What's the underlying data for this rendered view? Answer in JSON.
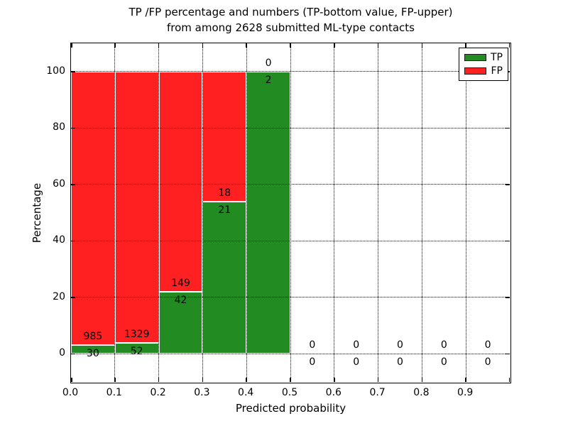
{
  "figure": {
    "title_line1": "TP /FP percentage and numbers (TP-bottom value, FP-upper)",
    "title_line2": "from among 2628 submitted ML-type contacts",
    "xlabel": "Predicted probability",
    "ylabel": "Percentage"
  },
  "legend": {
    "items": [
      {
        "label": "TP",
        "color": "#228b22"
      },
      {
        "label": "FP",
        "color": "#ff2121"
      }
    ]
  },
  "chart_data": {
    "type": "bar",
    "stacked": true,
    "title": "TP /FP percentage and numbers (TP-bottom value, FP-upper)\nfrom among 2628 submitted ML-type contacts",
    "xlabel": "Predicted probability",
    "ylabel": "Percentage",
    "total_submitted": 2628,
    "xlim": [
      0.0,
      1.0
    ],
    "ylim": [
      -10,
      110
    ],
    "grid": true,
    "grid_style": "dotted",
    "legend_position": "upper right",
    "series_colors": {
      "tp": "#228b22",
      "fp": "#ff2121"
    },
    "xticks": [
      "0.0",
      "0.1",
      "0.2",
      "0.3",
      "0.4",
      "0.5",
      "0.6",
      "0.7",
      "0.8",
      "0.9"
    ],
    "xtick_values": [
      0.0,
      0.1,
      0.2,
      0.3,
      0.4,
      0.5,
      0.6,
      0.7,
      0.8,
      0.9
    ],
    "yticks": [
      "0",
      "20",
      "40",
      "60",
      "80",
      "100"
    ],
    "ytick_values": [
      0,
      20,
      40,
      60,
      80,
      100
    ],
    "bins": [
      {
        "range": [
          0.0,
          0.1
        ],
        "tp": 30,
        "fp": 985,
        "tp_percent": 2.96,
        "fp_percent": 97.04
      },
      {
        "range": [
          0.1,
          0.2
        ],
        "tp": 52,
        "fp": 1329,
        "tp_percent": 3.77,
        "fp_percent": 96.23
      },
      {
        "range": [
          0.2,
          0.3
        ],
        "tp": 42,
        "fp": 149,
        "tp_percent": 21.99,
        "fp_percent": 78.01
      },
      {
        "range": [
          0.3,
          0.4
        ],
        "tp": 21,
        "fp": 18,
        "tp_percent": 53.85,
        "fp_percent": 46.15
      },
      {
        "range": [
          0.4,
          0.5
        ],
        "tp": 2,
        "fp": 0,
        "tp_percent": 100.0,
        "fp_percent": 0.0
      },
      {
        "range": [
          0.5,
          0.6
        ],
        "tp": 0,
        "fp": 0,
        "tp_percent": 0.0,
        "fp_percent": 0.0
      },
      {
        "range": [
          0.6,
          0.7
        ],
        "tp": 0,
        "fp": 0,
        "tp_percent": 0.0,
        "fp_percent": 0.0
      },
      {
        "range": [
          0.7,
          0.8
        ],
        "tp": 0,
        "fp": 0,
        "tp_percent": 0.0,
        "fp_percent": 0.0
      },
      {
        "range": [
          0.8,
          0.9
        ],
        "tp": 0,
        "fp": 0,
        "tp_percent": 0.0,
        "fp_percent": 0.0
      },
      {
        "range": [
          0.9,
          1.0
        ],
        "tp": 0,
        "fp": 0,
        "tp_percent": 0.0,
        "fp_percent": 0.0
      }
    ]
  }
}
